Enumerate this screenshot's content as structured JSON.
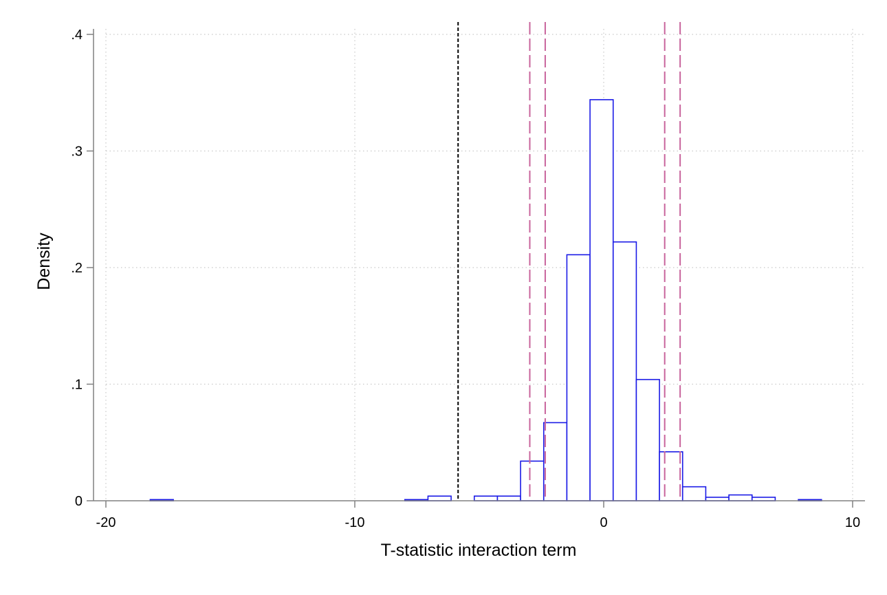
{
  "chart_data": {
    "type": "bar",
    "subtype": "histogram",
    "xlabel": "T-statistic interaction term",
    "ylabel": "Density",
    "xlim": [
      -20,
      10
    ],
    "ylim": [
      0,
      0.4
    ],
    "x_ticks": [
      -20,
      -10,
      0,
      10
    ],
    "x_tick_labels": [
      "-20",
      "-10",
      "0",
      "10"
    ],
    "y_ticks": [
      0,
      0.1,
      0.2,
      0.3,
      0.4
    ],
    "y_tick_labels": [
      "0",
      ".1",
      ".2",
      ".3",
      ".4"
    ],
    "grid": true,
    "bin_width": 0.93,
    "bins": [
      {
        "x0": -18.22,
        "x1": -17.29,
        "density": 0.001
      },
      {
        "x0": -7.99,
        "x1": -7.06,
        "density": 0.001
      },
      {
        "x0": -7.06,
        "x1": -6.13,
        "density": 0.004
      },
      {
        "x0": -5.2,
        "x1": -4.27,
        "density": 0.004
      },
      {
        "x0": -4.27,
        "x1": -3.34,
        "density": 0.004
      },
      {
        "x0": -3.34,
        "x1": -2.41,
        "density": 0.034
      },
      {
        "x0": -2.41,
        "x1": -1.48,
        "density": 0.067
      },
      {
        "x0": -1.48,
        "x1": -0.55,
        "density": 0.211
      },
      {
        "x0": -0.55,
        "x1": 0.38,
        "density": 0.344
      },
      {
        "x0": 0.38,
        "x1": 1.31,
        "density": 0.222
      },
      {
        "x0": 1.31,
        "x1": 2.24,
        "density": 0.104
      },
      {
        "x0": 2.24,
        "x1": 3.17,
        "density": 0.042
      },
      {
        "x0": 3.17,
        "x1": 4.1,
        "density": 0.012
      },
      {
        "x0": 4.1,
        "x1": 5.03,
        "density": 0.003
      },
      {
        "x0": 5.03,
        "x1": 5.96,
        "density": 0.005
      },
      {
        "x0": 5.96,
        "x1": 6.89,
        "density": 0.003
      },
      {
        "x0": 7.82,
        "x1": 8.75,
        "density": 0.001
      }
    ],
    "reference_lines": [
      {
        "x": -5.85,
        "style": "short-dash",
        "color": "#000000"
      },
      {
        "x": -2.97,
        "style": "long-dash",
        "color": "#c8649c"
      },
      {
        "x": -2.35,
        "style": "long-dash",
        "color": "#c8649c"
      },
      {
        "x": 2.45,
        "style": "long-dash",
        "color": "#c8649c"
      },
      {
        "x": 3.07,
        "style": "long-dash",
        "color": "#c8649c"
      }
    ],
    "colors": {
      "bar_outline": "#1a1ae6",
      "axis": "#808080",
      "grid": "#c8c8c8"
    }
  }
}
